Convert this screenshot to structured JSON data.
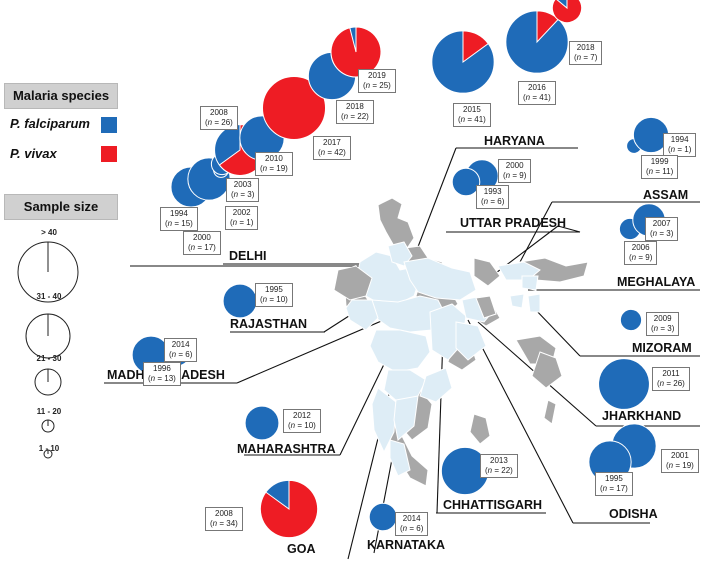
{
  "legend": {
    "species_title": "Malaria species",
    "species": [
      {
        "label": "P. falciparum",
        "color": "#1f6bb8"
      },
      {
        "label": "P. vivax",
        "color": "#ee1c24"
      }
    ],
    "size_title": "Sample size",
    "size_classes": [
      "> 40",
      "31 - 40",
      "21 - 30",
      "11 - 20",
      "1 - 10"
    ]
  },
  "map": {
    "india_fill": "#deedf6",
    "other_fill": "#a8a8a8",
    "border": "#ffffff"
  },
  "states": [
    {
      "name": "DELHI"
    },
    {
      "name": "HARYANA"
    },
    {
      "name": "UTTAR PRADESH"
    },
    {
      "name": "ASSAM"
    },
    {
      "name": "MEGHALAYA"
    },
    {
      "name": "RAJASTHAN"
    },
    {
      "name": "MIZORAM"
    },
    {
      "name": "MADHYA PRADESH"
    },
    {
      "name": "JHARKHAND"
    },
    {
      "name": "MAHARASHTRA"
    },
    {
      "name": "ODISHA"
    },
    {
      "name": "CHHATTISGARH"
    },
    {
      "name": "GOA"
    },
    {
      "name": "KARNATAKA"
    }
  ],
  "samples": [
    {
      "state": "DELHI",
      "year": "1994",
      "n": "15",
      "pf_fraction": 1.0
    },
    {
      "state": "DELHI",
      "year": "2000",
      "n": "17",
      "pf_fraction": 1.0
    },
    {
      "state": "DELHI",
      "year": "2002",
      "n": "1",
      "pf_fraction": 1.0
    },
    {
      "state": "DELHI",
      "year": "2003",
      "n": "3",
      "pf_fraction": 1.0
    },
    {
      "state": "DELHI",
      "year": "2008",
      "n": "26",
      "pf_fraction": 0.35
    },
    {
      "state": "DELHI",
      "year": "2010",
      "n": "19",
      "pf_fraction": 1.0
    },
    {
      "state": "DELHI",
      "year": "2017",
      "n": "42",
      "pf_fraction": 0.0
    },
    {
      "state": "DELHI",
      "year": "2018",
      "n": "22",
      "pf_fraction": 1.0
    },
    {
      "state": "DELHI",
      "year": "2019",
      "n": "25",
      "pf_fraction": 0.04
    },
    {
      "state": "HARYANA",
      "year": "2015",
      "n": "41",
      "pf_fraction": 0.85
    },
    {
      "state": "HARYANA",
      "year": "2016",
      "n": "41",
      "pf_fraction": 0.88
    },
    {
      "state": "HARYANA",
      "year": "2018",
      "n": "7",
      "pf_fraction": 0.14
    },
    {
      "state": "UTTAR PRADESH",
      "year": "2000",
      "n": "9",
      "pf_fraction": 1.0
    },
    {
      "state": "UTTAR PRADESH",
      "year": "1993",
      "n": "6",
      "pf_fraction": 1.0
    },
    {
      "state": "ASSAM",
      "year": "1994",
      "n": "1",
      "pf_fraction": 1.0
    },
    {
      "state": "ASSAM",
      "year": "1999",
      "n": "11",
      "pf_fraction": 1.0
    },
    {
      "state": "MEGHALAYA",
      "year": "2007",
      "n": "3",
      "pf_fraction": 1.0
    },
    {
      "state": "MEGHALAYA",
      "year": "2006",
      "n": "9",
      "pf_fraction": 1.0
    },
    {
      "state": "RAJASTHAN",
      "year": "1995",
      "n": "10",
      "pf_fraction": 1.0
    },
    {
      "state": "MIZORAM",
      "year": "2009",
      "n": "3",
      "pf_fraction": 1.0
    },
    {
      "state": "MADHYA PRADESH",
      "year": "2014",
      "n": "6",
      "pf_fraction": 1.0
    },
    {
      "state": "MADHYA PRADESH",
      "year": "1996",
      "n": "13",
      "pf_fraction": 1.0
    },
    {
      "state": "JHARKHAND",
      "year": "2011",
      "n": "26",
      "pf_fraction": 1.0
    },
    {
      "state": "MAHARASHTRA",
      "year": "2012",
      "n": "10",
      "pf_fraction": 1.0
    },
    {
      "state": "ODISHA",
      "year": "2001",
      "n": "19",
      "pf_fraction": 1.0
    },
    {
      "state": "ODISHA",
      "year": "1995",
      "n": "17",
      "pf_fraction": 1.0
    },
    {
      "state": "CHHATTISGARH",
      "year": "2013",
      "n": "22",
      "pf_fraction": 1.0
    },
    {
      "state": "GOA",
      "year": "2008",
      "n": "34",
      "pf_fraction": 0.15
    },
    {
      "state": "KARNATAKA",
      "year": "2014",
      "n": "6",
      "pf_fraction": 1.0
    }
  ]
}
